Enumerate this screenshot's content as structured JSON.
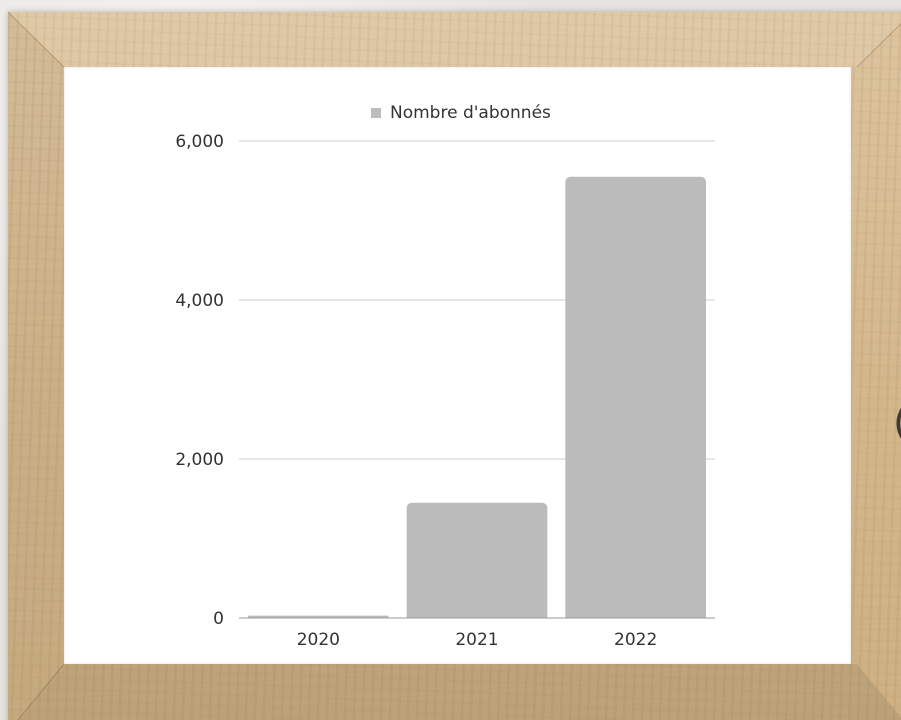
{
  "legend": {
    "label": "Nombre d'abonnés",
    "swatch_color": "#bdbdbd"
  },
  "chart_data": {
    "type": "bar",
    "categories": [
      "2020",
      "2021",
      "2022"
    ],
    "series": [
      {
        "name": "Nombre d'abonnés",
        "values": [
          30,
          1450,
          5550
        ],
        "color": "#bbbbbb"
      }
    ],
    "ylim": [
      0,
      6000
    ],
    "yticks": [
      0,
      2000,
      4000,
      6000
    ],
    "ytick_labels": [
      "0",
      "2,000",
      "4,000",
      "6,000"
    ],
    "grid": true,
    "legend_position": "top-center",
    "title": "",
    "xlabel": "",
    "ylabel": ""
  },
  "colors": {
    "frame_wood": "#d4b88d",
    "mat": "#ffffff",
    "gridline": "#cccccc",
    "axis": "#999999",
    "text": "#333333"
  }
}
